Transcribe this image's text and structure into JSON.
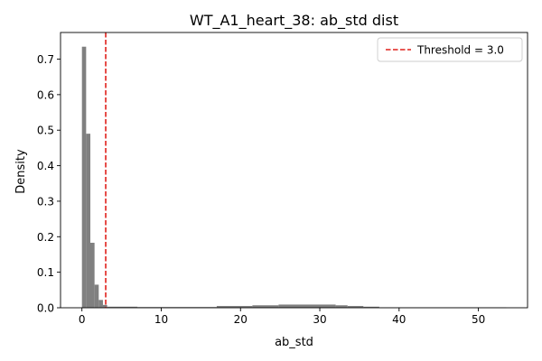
{
  "chart_data": {
    "type": "bar",
    "title": "WT_A1_heart_38: ab_std dist",
    "xlabel": "ab_std",
    "ylabel": "Density",
    "xlim": [
      -2.7,
      56.2
    ],
    "ylim": [
      0,
      0.775
    ],
    "xticks": [
      0,
      10,
      20,
      30,
      40,
      50
    ],
    "yticks": [
      0.0,
      0.1,
      0.2,
      0.3,
      0.4,
      0.5,
      0.6,
      0.7
    ],
    "bins": [
      {
        "x0": 0.0,
        "x1": 0.53,
        "density": 0.735
      },
      {
        "x0": 0.53,
        "x1": 1.06,
        "density": 0.49
      },
      {
        "x0": 1.06,
        "x1": 1.59,
        "density": 0.183
      },
      {
        "x0": 1.59,
        "x1": 2.12,
        "density": 0.065
      },
      {
        "x0": 2.12,
        "x1": 2.65,
        "density": 0.022
      },
      {
        "x0": 2.65,
        "x1": 3.18,
        "density": 0.008
      },
      {
        "x0": 3.18,
        "x1": 7.0,
        "density": 0.003
      },
      {
        "x0": 7.0,
        "x1": 17.0,
        "density": 0.002
      },
      {
        "x0": 17.0,
        "x1": 21.5,
        "density": 0.005
      },
      {
        "x0": 21.5,
        "x1": 24.8,
        "density": 0.007
      },
      {
        "x0": 24.8,
        "x1": 32.0,
        "density": 0.009
      },
      {
        "x0": 32.0,
        "x1": 33.5,
        "density": 0.007
      },
      {
        "x0": 33.5,
        "x1": 35.5,
        "density": 0.005
      },
      {
        "x0": 35.5,
        "x1": 37.5,
        "density": 0.003
      },
      {
        "x0": 37.5,
        "x1": 53.5,
        "density": 0.001
      }
    ],
    "bar_color": "#808080",
    "threshold": {
      "value": 3.0,
      "label": "Threshold = 3.0",
      "color": "#e0201b",
      "style": "dashed"
    },
    "legend_position": "top-right",
    "grid": false
  }
}
